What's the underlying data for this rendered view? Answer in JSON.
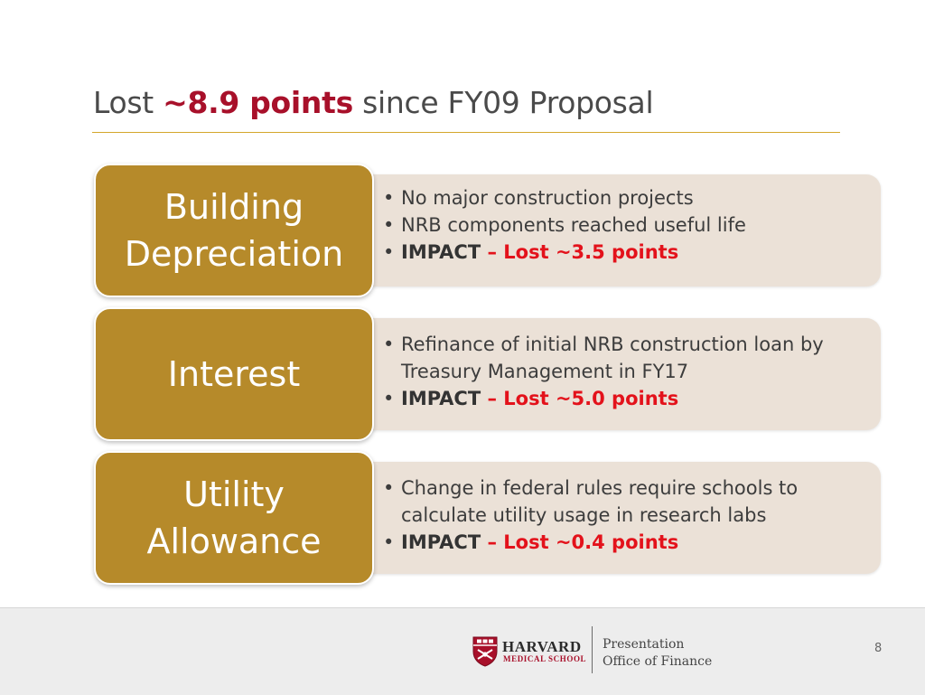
{
  "title": {
    "prefix": "Lost ",
    "highlight": "~8.9 points",
    "suffix": " since FY09 Proposal"
  },
  "sections": [
    {
      "label": "Building\nDepreciation",
      "bullets": [
        "No major construction projects",
        "NRB components reached useful life"
      ],
      "impact_label": "IMPACT",
      "impact_value": " – Lost ~3.5 points"
    },
    {
      "label": "Interest",
      "bullets": [
        "Refinance of initial NRB construction loan by Treasury Management in FY17"
      ],
      "impact_label": "IMPACT",
      "impact_value": " – Lost ~5.0 points"
    },
    {
      "label": "Utility\nAllowance",
      "bullets": [
        "Change in federal rules require schools to calculate utility usage in research labs"
      ],
      "impact_label": "IMPACT",
      "impact_value": " – Lost ~0.4 points"
    }
  ],
  "footer": {
    "logo_name": "HARVARD",
    "logo_sub": "MEDICAL SCHOOL",
    "line1": "Presentation",
    "line2": "Office of Finance",
    "page_number": "8"
  },
  "colors": {
    "accent_red": "#a8102a",
    "impact_red": "#e3121b",
    "label_gold": "#b68a2a",
    "card_beige": "#ebe1d7",
    "rule_gold": "#d4a72c"
  }
}
